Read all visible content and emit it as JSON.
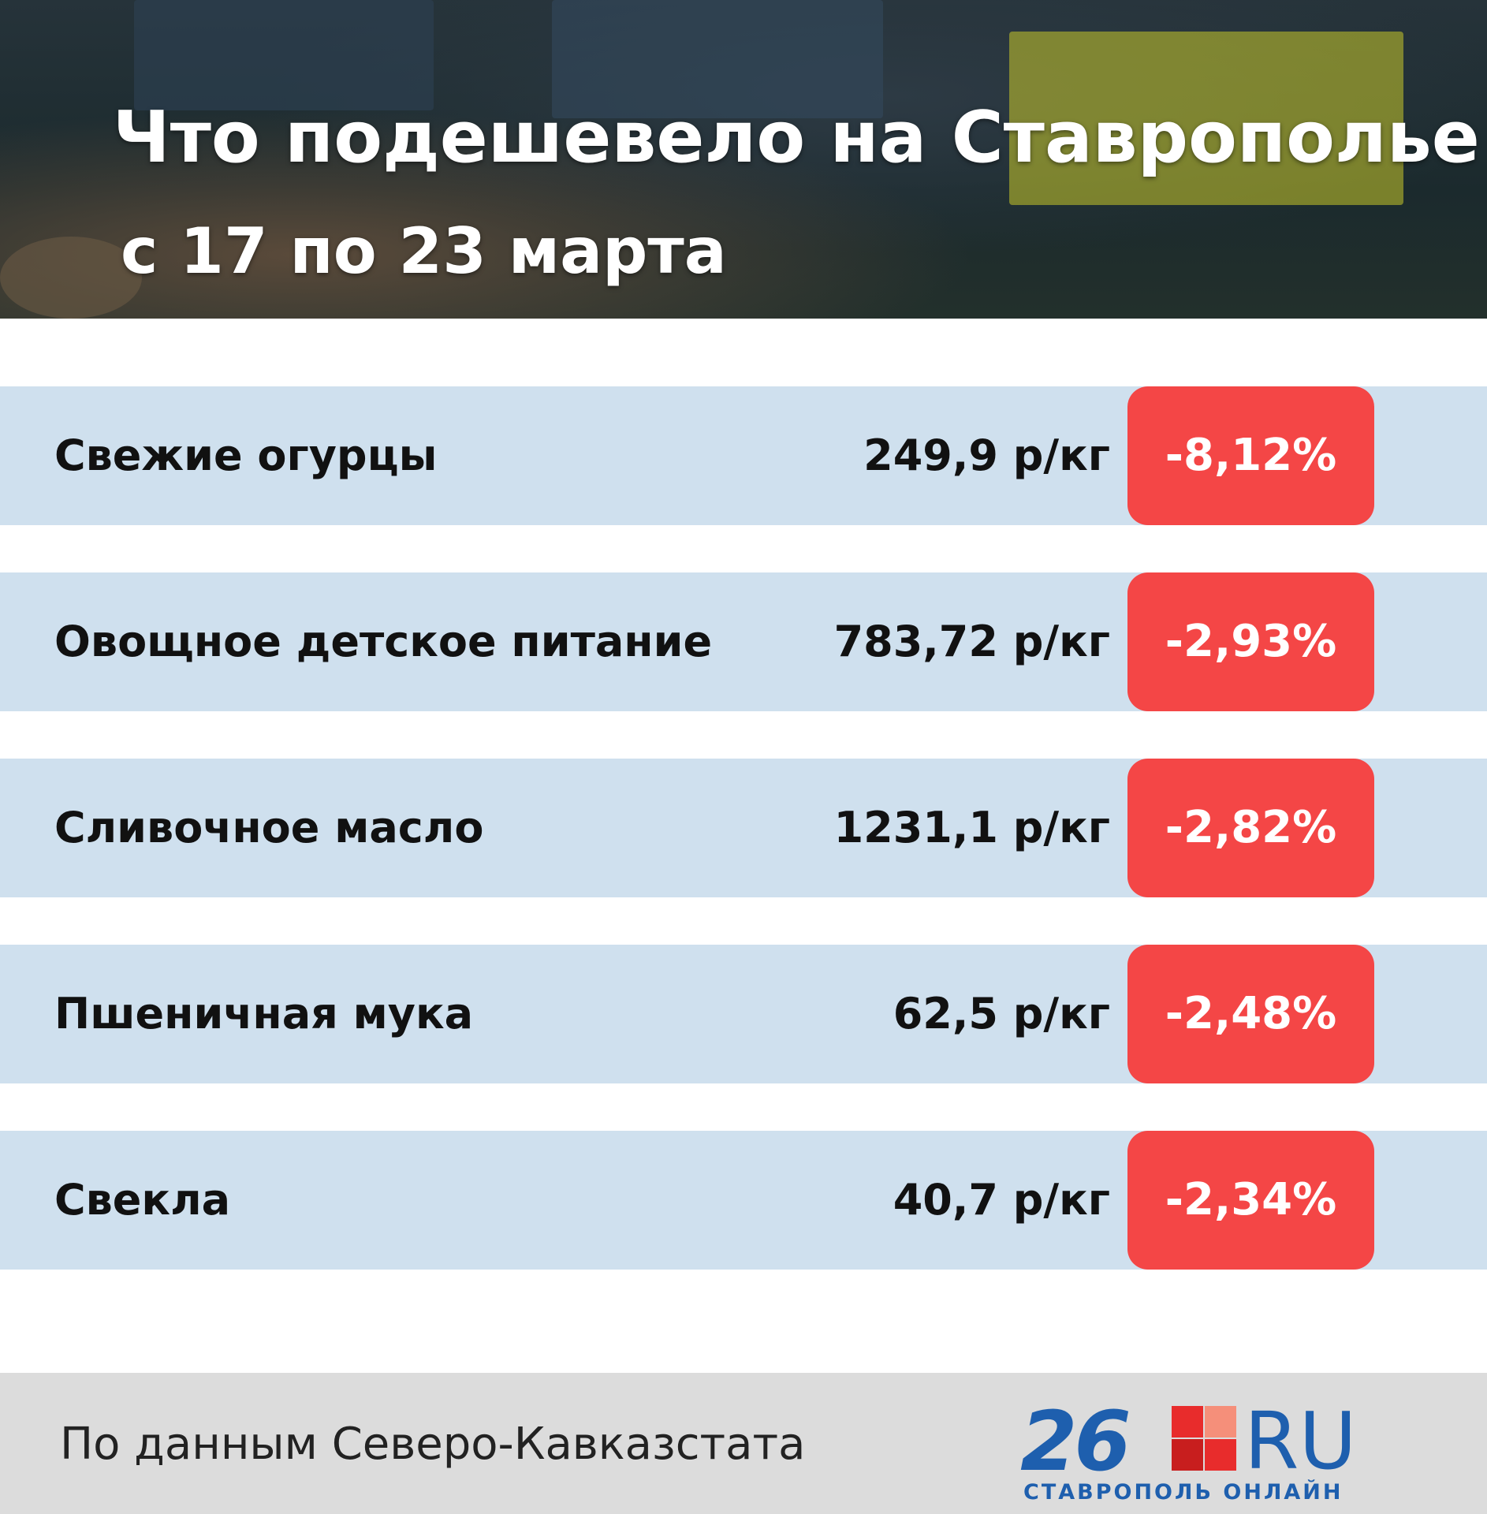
{
  "header": {
    "title": "Что подешевело на Ставрополье",
    "subtitle": "с 17 по 23 марта"
  },
  "rows": [
    {
      "name": "Свежие огурцы",
      "price": "249,9 р/кг",
      "change": "-8,12%"
    },
    {
      "name": "Овощное детское питание",
      "price": "783,72 р/кг",
      "change": "-2,93%"
    },
    {
      "name": "Сливочное масло",
      "price": "1231,1 р/кг",
      "change": "-2,82%"
    },
    {
      "name": "Пшеничная мука",
      "price": "62,5 р/кг",
      "change": "-2,48%"
    },
    {
      "name": "Свекла",
      "price": "40,7 р/кг",
      "change": "-2,34%"
    }
  ],
  "footer": {
    "source": "По данным Северо-Кавказстата",
    "logo": {
      "number": "26",
      "domain": "RU",
      "tagline": "СТАВРОПОЛЬ ОНЛАЙН"
    }
  }
}
